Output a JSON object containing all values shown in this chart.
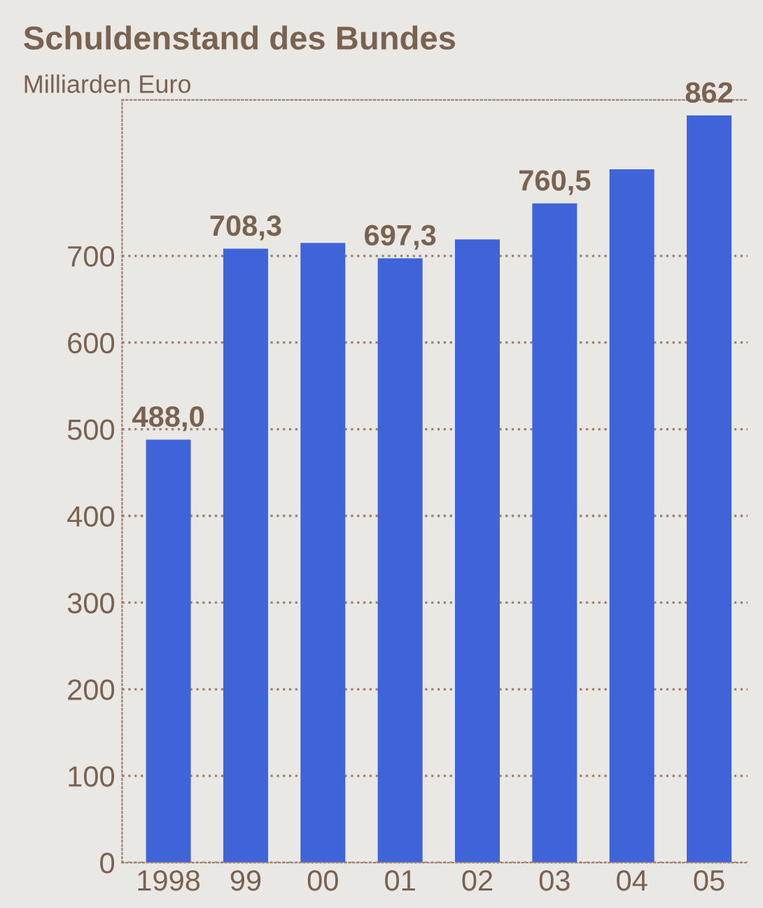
{
  "chart_data": {
    "type": "bar",
    "title": "Schuldenstand des Bundes",
    "ylabel": "Milliarden Euro",
    "categories": [
      "1998",
      "99",
      "00",
      "01",
      "02",
      "03",
      "04",
      "05"
    ],
    "values": [
      488.0,
      708.3,
      715,
      697.3,
      719,
      760.5,
      800,
      862
    ],
    "value_labels": [
      "488,0",
      "708,3",
      null,
      "697,3",
      null,
      "760,5",
      null,
      "862"
    ],
    "color": "#3f63d8",
    "ylim": [
      0,
      880
    ],
    "yticks": [
      0,
      100,
      200,
      300,
      400,
      500,
      600,
      700
    ],
    "grid": "y"
  }
}
